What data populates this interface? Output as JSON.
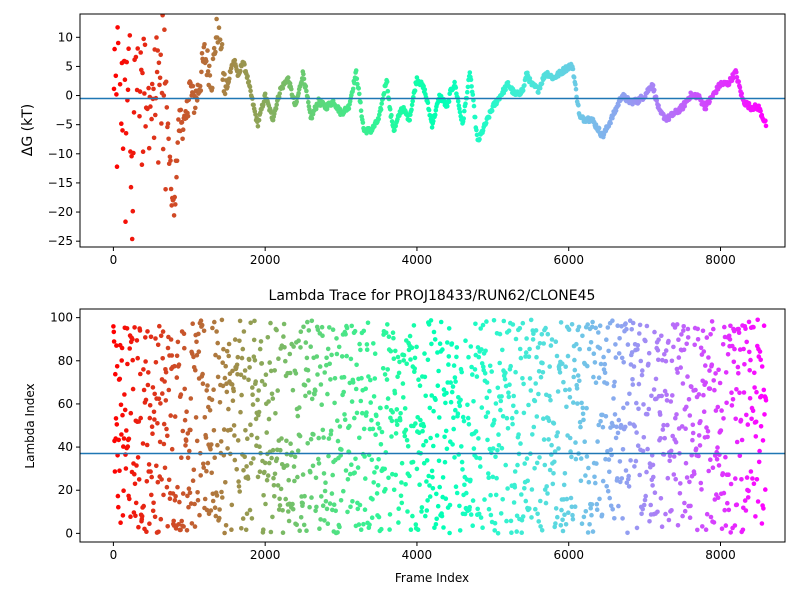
{
  "chart_data": [
    {
      "type": "scatter",
      "title": "",
      "xlabel": "",
      "ylabel": "ΔG (kT)",
      "xlim": [
        -440,
        8850
      ],
      "ylim": [
        -26,
        14
      ],
      "xticks": [
        0,
        2000,
        4000,
        6000,
        8000
      ],
      "yticks": [
        -25,
        -20,
        -15,
        -10,
        -5,
        0,
        5,
        10
      ],
      "xtick_labels": [
        "0",
        "2000",
        "4000",
        "6000",
        "8000"
      ],
      "ytick_labels": [
        "−25",
        "−20",
        "−15",
        "−10",
        "−5",
        "0",
        "5",
        "10"
      ],
      "hline": -0.5,
      "hline_color": "#1f77b4",
      "colormap": "rainbow (red at frame 0 → purple at frame 8600)",
      "grid": false,
      "legend": "none",
      "x_max": 8600,
      "trace_anchors": [
        [
          0,
          10
        ],
        [
          40,
          -5
        ],
        [
          80,
          8
        ],
        [
          120,
          2
        ],
        [
          160,
          -10
        ],
        [
          200,
          12
        ],
        [
          240,
          -20
        ],
        [
          280,
          6
        ],
        [
          320,
          10
        ],
        [
          360,
          -3
        ],
        [
          400,
          4
        ],
        [
          450,
          0
        ],
        [
          500,
          12
        ],
        [
          550,
          -3
        ],
        [
          600,
          4
        ],
        [
          650,
          0
        ],
        [
          700,
          -2
        ],
        [
          760,
          -16
        ],
        [
          800,
          -21
        ],
        [
          830,
          -12
        ],
        [
          860,
          -5
        ],
        [
          900,
          -4
        ],
        [
          950,
          -6
        ],
        [
          1000,
          2
        ],
        [
          1050,
          -1
        ],
        [
          1100,
          0
        ],
        [
          1150,
          3
        ],
        [
          1200,
          7
        ],
        [
          1250,
          5
        ],
        [
          1300,
          3
        ],
        [
          1350,
          10
        ],
        [
          1400,
          13
        ],
        [
          1450,
          2
        ],
        [
          1500,
          1
        ],
        [
          1550,
          5
        ],
        [
          1600,
          6
        ],
        [
          1650,
          3
        ],
        [
          1700,
          6
        ],
        [
          1750,
          4
        ],
        [
          1800,
          1
        ],
        [
          1850,
          -2
        ],
        [
          1900,
          -5
        ],
        [
          2000,
          0
        ],
        [
          2100,
          -4
        ],
        [
          2200,
          1
        ],
        [
          2300,
          3
        ],
        [
          2400,
          -2
        ],
        [
          2500,
          4
        ],
        [
          2600,
          -4
        ],
        [
          2700,
          -1
        ],
        [
          2800,
          -2
        ],
        [
          2900,
          -1
        ],
        [
          3000,
          -3
        ],
        [
          3100,
          -2
        ],
        [
          3200,
          4
        ],
        [
          3300,
          -6
        ],
        [
          3400,
          -6
        ],
        [
          3500,
          -4
        ],
        [
          3600,
          3
        ],
        [
          3650,
          -3
        ],
        [
          3700,
          -6
        ],
        [
          3800,
          -2
        ],
        [
          3900,
          -4
        ],
        [
          4000,
          3
        ],
        [
          4100,
          1
        ],
        [
          4200,
          -5
        ],
        [
          4300,
          0
        ],
        [
          4400,
          -2
        ],
        [
          4450,
          1
        ],
        [
          4500,
          2
        ],
        [
          4600,
          -5
        ],
        [
          4700,
          4
        ],
        [
          4800,
          -8
        ],
        [
          4900,
          -5
        ],
        [
          5000,
          -2
        ],
        [
          5100,
          0
        ],
        [
          5200,
          2
        ],
        [
          5300,
          0
        ],
        [
          5400,
          1
        ],
        [
          5450,
          4
        ],
        [
          5500,
          2
        ],
        [
          5600,
          1
        ],
        [
          5700,
          4
        ],
        [
          5800,
          3
        ],
        [
          5900,
          4
        ],
        [
          6000,
          5
        ],
        [
          6050,
          5
        ],
        [
          6150,
          -4
        ],
        [
          6300,
          -4
        ],
        [
          6450,
          -7
        ],
        [
          6600,
          -3
        ],
        [
          6700,
          0
        ],
        [
          6800,
          -1
        ],
        [
          6900,
          -1
        ],
        [
          7000,
          0
        ],
        [
          7100,
          2
        ],
        [
          7200,
          -3
        ],
        [
          7300,
          -4
        ],
        [
          7400,
          -3
        ],
        [
          7500,
          -2
        ],
        [
          7600,
          0
        ],
        [
          7700,
          0
        ],
        [
          7800,
          -2
        ],
        [
          7900,
          0
        ],
        [
          8000,
          2
        ],
        [
          8100,
          2
        ],
        [
          8200,
          4
        ],
        [
          8300,
          -1
        ],
        [
          8400,
          -2
        ],
        [
          8500,
          -2
        ],
        [
          8600,
          -5
        ]
      ]
    },
    {
      "type": "scatter",
      "title": "Lambda Trace for PROJ18433/RUN62/CLONE45",
      "xlabel": "Frame Index",
      "ylabel": "Lambda Index",
      "xlim": [
        -440,
        8850
      ],
      "ylim": [
        -4,
        104
      ],
      "xticks": [
        0,
        2000,
        4000,
        6000,
        8000
      ],
      "yticks": [
        0,
        20,
        40,
        60,
        80,
        100
      ],
      "xtick_labels": [
        "0",
        "2000",
        "4000",
        "6000",
        "8000"
      ],
      "ytick_labels": [
        "0",
        "20",
        "40",
        "60",
        "80",
        "100"
      ],
      "hline": 37,
      "hline_color": "#1f77b4",
      "colormap": "rainbow (red at frame 0 → purple at frame 8600)",
      "grid": false,
      "legend": "none",
      "x_max": 8600,
      "lambda_range": [
        0,
        99
      ]
    }
  ]
}
